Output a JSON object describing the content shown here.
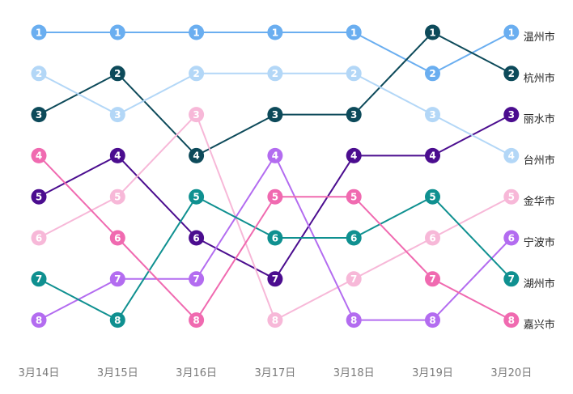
{
  "chart_data": {
    "type": "line",
    "subtype": "bump",
    "categories": [
      "3月14日",
      "3月15日",
      "3月16日",
      "3月17日",
      "3月18日",
      "3月19日",
      "3月20日"
    ],
    "y_axis": {
      "reversed": true,
      "min_rank": 1,
      "max_rank": 8
    },
    "grid": false,
    "legend": "end-labels",
    "series": [
      {
        "name": "温州市",
        "color": "#6aaef0",
        "ranks": [
          1,
          1,
          1,
          1,
          1,
          2,
          1
        ]
      },
      {
        "name": "杭州市",
        "color": "#0d4a5a",
        "ranks": [
          3,
          2,
          4,
          3,
          3,
          1,
          2
        ]
      },
      {
        "name": "丽水市",
        "color": "#4b0d8f",
        "ranks": [
          5,
          4,
          6,
          7,
          4,
          4,
          3
        ]
      },
      {
        "name": "台州市",
        "color": "#b3d7f7",
        "ranks": [
          2,
          3,
          2,
          2,
          2,
          3,
          4
        ]
      },
      {
        "name": "金华市",
        "color": "#f7b8d8",
        "ranks": [
          6,
          5,
          3,
          8,
          7,
          6,
          5
        ]
      },
      {
        "name": "宁波市",
        "color": "#b36cf0",
        "ranks": [
          8,
          7,
          7,
          4,
          8,
          8,
          6
        ]
      },
      {
        "name": "湖州市",
        "color": "#0f9090",
        "ranks": [
          7,
          8,
          5,
          6,
          6,
          5,
          7
        ]
      },
      {
        "name": "嘉兴市",
        "color": "#f06ab0",
        "ranks": [
          4,
          6,
          8,
          5,
          5,
          7,
          8
        ]
      }
    ]
  }
}
